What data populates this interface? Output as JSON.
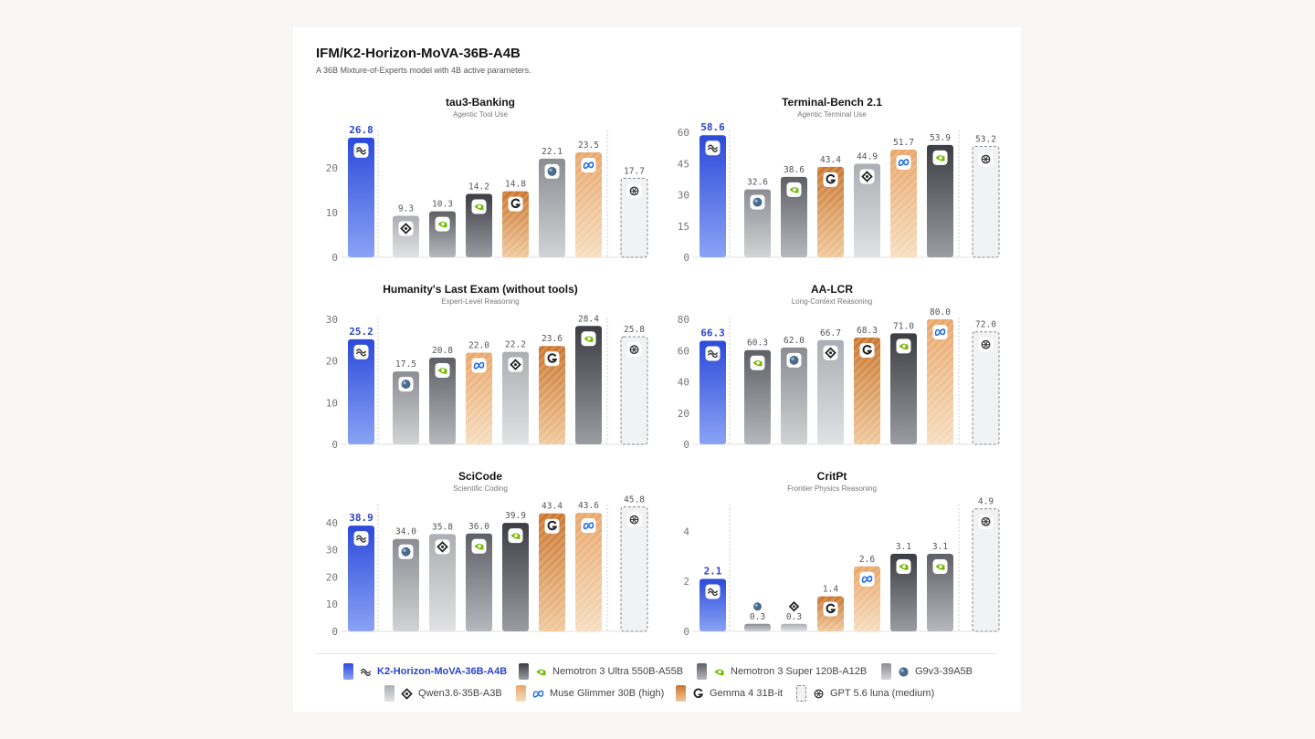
{
  "header": {
    "title": "IFM/K2-Horizon-MoVA-36B-A4B",
    "subtitle": "A 36B Mixture-of-Experts model with 4B active parameters."
  },
  "models": [
    {
      "key": "k2",
      "name": "K2-Horizon-MoVA-36B-A4B",
      "icon": "k2-wave-icon",
      "style": "blue"
    },
    {
      "key": "nemo_ultra",
      "name": "Nemotron 3 Ultra 550B-A55B",
      "icon": "nvidia-icon",
      "style": "dark"
    },
    {
      "key": "nemo_super",
      "name": "Nemotron 3 Super 120B-A12B",
      "icon": "nvidia-icon",
      "style": "mid"
    },
    {
      "key": "g9",
      "name": "G9v3-39A5B",
      "icon": "globe-icon",
      "style": "grey"
    },
    {
      "key": "qwen",
      "name": "Qwen3.6-35B-A3B",
      "icon": "qwen-icon",
      "style": "light"
    },
    {
      "key": "muse",
      "name": "Muse Glimmer 30B (high)",
      "icon": "meta-icon",
      "style": "peach"
    },
    {
      "key": "gemma",
      "name": "Gemma 4 31B-it",
      "icon": "google-icon",
      "style": "orange"
    },
    {
      "key": "gpt",
      "name": "GPT 5.6 luna (medium)",
      "icon": "openai-icon",
      "style": "outline"
    }
  ],
  "colors": {
    "blue_top": "#2c4ad9",
    "blue_bottom": "#8aa3f5",
    "dark_top": "#3c3e44",
    "dark_bottom": "#9a9ca2",
    "mid_top": "#5e6066",
    "mid_bottom": "#b6b8bd",
    "grey_top": "#8b8d93",
    "grey_bottom": "#d2d3d6",
    "light_top": "#acaeb3",
    "light_bottom": "#e1e2e4",
    "peach_top": "#e8a568",
    "peach_bottom": "#f6ddbe",
    "orange_top": "#c9742c",
    "orange_bottom": "#f0c89a",
    "outline_fill": "#f1f2f4",
    "outline_stroke": "#8a8a8a",
    "highlight_label": "#2a43c9"
  },
  "chart_data": [
    {
      "type": "bar",
      "title": "tau3-Banking",
      "subtitle": "Agentic Tool Use",
      "ylim": [
        0,
        28
      ],
      "yticks": [
        0,
        10,
        20
      ],
      "series": [
        {
          "model": "k2",
          "value": 26.8,
          "label": "26.8"
        },
        {
          "model": "qwen",
          "value": 9.3,
          "label": "9.3"
        },
        {
          "model": "nemo_super",
          "value": 10.3,
          "label": "10.3"
        },
        {
          "model": "nemo_ultra",
          "value": 14.2,
          "label": "14.2"
        },
        {
          "model": "gemma",
          "value": 14.8,
          "label": "14.8"
        },
        {
          "model": "g9",
          "value": 22.1,
          "label": "22.1"
        },
        {
          "model": "muse",
          "value": 23.5,
          "label": "23.5"
        },
        {
          "model": "gpt",
          "value": 17.7,
          "label": "17.7"
        }
      ]
    },
    {
      "type": "bar",
      "title": "Terminal-Bench 2.1",
      "subtitle": "Agentic Terminal Use",
      "ylim": [
        0,
        60
      ],
      "yticks": [
        0,
        15,
        30,
        45,
        60
      ],
      "series": [
        {
          "model": "k2",
          "value": 58.6,
          "label": "58.6"
        },
        {
          "model": "g9",
          "value": 32.6,
          "label": "32.6"
        },
        {
          "model": "nemo_super",
          "value": 38.6,
          "label": "38.6"
        },
        {
          "model": "gemma",
          "value": 43.4,
          "label": "43.4"
        },
        {
          "model": "qwen",
          "value": 44.9,
          "label": "44.9"
        },
        {
          "model": "muse",
          "value": 51.7,
          "label": "51.7"
        },
        {
          "model": "nemo_ultra",
          "value": 53.9,
          "label": "53.9"
        },
        {
          "model": "gpt",
          "value": 53.2,
          "label": "53.2"
        }
      ]
    },
    {
      "type": "bar",
      "title": "Humanity's Last Exam (without tools)",
      "subtitle": "Expert-Level Reasoning",
      "ylim": [
        0,
        30
      ],
      "yticks": [
        0,
        10,
        20,
        30
      ],
      "series": [
        {
          "model": "k2",
          "value": 25.2,
          "label": "25.2"
        },
        {
          "model": "g9",
          "value": 17.5,
          "label": "17.5"
        },
        {
          "model": "nemo_super",
          "value": 20.8,
          "label": "20.8"
        },
        {
          "model": "muse",
          "value": 22.0,
          "label": "22.0"
        },
        {
          "model": "qwen",
          "value": 22.2,
          "label": "22.2"
        },
        {
          "model": "gemma",
          "value": 23.6,
          "label": "23.6"
        },
        {
          "model": "nemo_ultra",
          "value": 28.4,
          "label": "28.4"
        },
        {
          "model": "gpt",
          "value": 25.8,
          "label": "25.8"
        }
      ]
    },
    {
      "type": "bar",
      "title": "AA-LCR",
      "subtitle": "Long-Context Reasoning",
      "ylim": [
        0,
        80
      ],
      "yticks": [
        0,
        20,
        40,
        60,
        80
      ],
      "series": [
        {
          "model": "k2",
          "value": 66.3,
          "label": "66.3"
        },
        {
          "model": "nemo_super",
          "value": 60.3,
          "label": "60.3"
        },
        {
          "model": "g9",
          "value": 62.0,
          "label": "62.0"
        },
        {
          "model": "qwen",
          "value": 66.7,
          "label": "66.7"
        },
        {
          "model": "gemma",
          "value": 68.3,
          "label": "68.3"
        },
        {
          "model": "nemo_ultra",
          "value": 71.0,
          "label": "71.0"
        },
        {
          "model": "muse",
          "value": 80.0,
          "label": "80.0"
        },
        {
          "model": "gpt",
          "value": 72.0,
          "label": "72.0"
        }
      ]
    },
    {
      "type": "bar",
      "title": "SciCode",
      "subtitle": "Scientific Coding",
      "ylim": [
        0,
        46
      ],
      "yticks": [
        0,
        10,
        20,
        30,
        40
      ],
      "series": [
        {
          "model": "k2",
          "value": 38.9,
          "label": "38.9"
        },
        {
          "model": "g9",
          "value": 34.0,
          "label": "34.0"
        },
        {
          "model": "qwen",
          "value": 35.8,
          "label": "35.8"
        },
        {
          "model": "nemo_super",
          "value": 36.0,
          "label": "36.0"
        },
        {
          "model": "nemo_ultra",
          "value": 39.9,
          "label": "39.9"
        },
        {
          "model": "gemma",
          "value": 43.4,
          "label": "43.4"
        },
        {
          "model": "muse",
          "value": 43.6,
          "label": "43.6"
        },
        {
          "model": "gpt",
          "value": 45.8,
          "label": "45.8"
        }
      ]
    },
    {
      "type": "bar",
      "title": "CritPt",
      "subtitle": "Frontier Physics Reasoning",
      "ylim": [
        0,
        5
      ],
      "yticks": [
        0,
        2,
        4
      ],
      "series": [
        {
          "model": "k2",
          "value": 2.1,
          "label": "2.1"
        },
        {
          "model": "g9",
          "value": 0.3,
          "label": "0.3"
        },
        {
          "model": "qwen",
          "value": 0.3,
          "label": "0.3"
        },
        {
          "model": "gemma",
          "value": 1.4,
          "label": "1.4"
        },
        {
          "model": "muse",
          "value": 2.6,
          "label": "2.6"
        },
        {
          "model": "nemo_ultra",
          "value": 3.1,
          "label": "3.1"
        },
        {
          "model": "nemo_super",
          "value": 3.1,
          "label": "3.1"
        },
        {
          "model": "gpt",
          "value": 4.9,
          "label": "4.9"
        }
      ]
    }
  ]
}
